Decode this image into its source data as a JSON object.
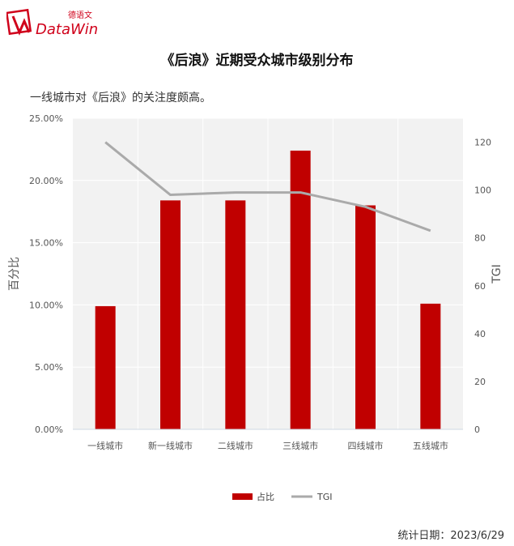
{
  "logo": {
    "cn": "德语文",
    "en": "DataWin",
    "mark_color": "#d0021b"
  },
  "title": "《后浪》近期受众城市级别分布",
  "subtitle": "一线城市对《后浪》的关注度颇高。",
  "footer": {
    "date_label": "统计日期：2023/6/29"
  },
  "chart_data": {
    "type": "bar",
    "categories": [
      "一线城市",
      "新一线城市",
      "二线城市",
      "三线城市",
      "四线城市",
      "五线城市"
    ],
    "series": [
      {
        "name": "占比",
        "type": "bar",
        "axis": "left",
        "color": "#c00000",
        "values": [
          9.9,
          18.4,
          18.4,
          22.4,
          18.0,
          10.1
        ]
      },
      {
        "name": "TGI",
        "type": "line",
        "axis": "right",
        "color": "#aaaaaa",
        "values": [
          120,
          98,
          99,
          99,
          93,
          83
        ]
      }
    ],
    "ylabel": "百分比",
    "y2label": "TGI",
    "ylim": [
      0,
      25
    ],
    "y2lim": [
      0,
      130
    ],
    "yticks": [
      "0.00%",
      "5.00%",
      "10.00%",
      "15.00%",
      "20.00%",
      "25.00%"
    ],
    "y2ticks": [
      "0",
      "20",
      "40",
      "60",
      "80",
      "100",
      "120"
    ],
    "legend": "bottom-center",
    "plot_background": "#f2f2f2",
    "grid": true
  }
}
